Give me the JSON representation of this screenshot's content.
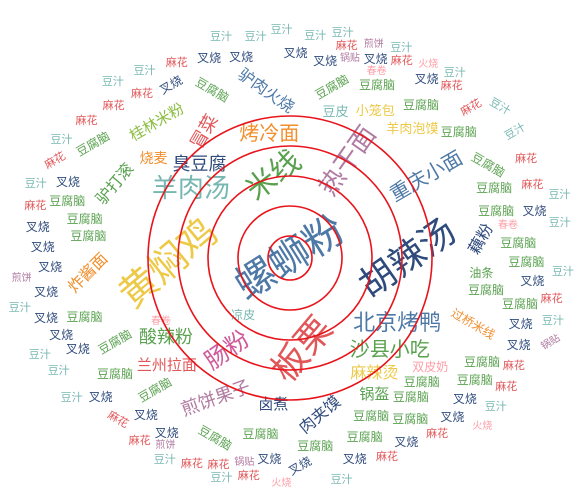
{
  "colors": {
    "background": "#ffffff",
    "ring": "#e8141b",
    "palette": [
      "#4e79a7",
      "#f28e2b",
      "#e15759",
      "#76b7b2",
      "#59a14f",
      "#edc948",
      "#b07aa1",
      "#ff9da7",
      "#9c755f",
      "#2f4b7c",
      "#8cbe44",
      "#d05a9a"
    ]
  },
  "words": [
    {
      "text": "螺蛳粉",
      "size": 40,
      "angle": -32,
      "color": "#4e79a7"
    },
    {
      "text": "黄焖鸡",
      "size": 38,
      "angle": -40,
      "color": "#edc948"
    },
    {
      "text": "胡辣汤",
      "size": 36,
      "angle": -35,
      "color": "#2f4b7c"
    },
    {
      "text": "板栗",
      "size": 36,
      "angle": -50,
      "color": "#e15759"
    },
    {
      "text": "米线",
      "size": 30,
      "angle": -38,
      "color": "#59a14f"
    },
    {
      "text": "热干面",
      "size": 26,
      "angle": -55,
      "color": "#b07aa1"
    },
    {
      "text": "肠粉",
      "size": 24,
      "angle": -35,
      "color": "#d05a9a"
    },
    {
      "text": "羊肉汤",
      "size": 26,
      "angle": 0,
      "color": "#76b7b2"
    },
    {
      "text": "北京烤鸭",
      "size": 22,
      "angle": 0,
      "color": "#4e79a7"
    },
    {
      "text": "沙县小吃",
      "size": 20,
      "angle": 0,
      "color": "#59a14f"
    },
    {
      "text": "臭豆腐",
      "size": 18,
      "angle": 0,
      "color": "#2f4b7c"
    },
    {
      "text": "重庆小面",
      "size": 20,
      "angle": -30,
      "color": "#4e79a7"
    },
    {
      "text": "烤冷面",
      "size": 20,
      "angle": 0,
      "color": "#f28e2b"
    },
    {
      "text": "酸辣粉",
      "size": 18,
      "angle": 0,
      "color": "#59a14f"
    },
    {
      "text": "麻辣烫",
      "size": 16,
      "angle": 0,
      "color": "#edc948"
    },
    {
      "text": "煎饼果子",
      "size": 18,
      "angle": -20,
      "color": "#b07aa1"
    },
    {
      "text": "冒菜",
      "size": 18,
      "angle": -60,
      "color": "#e15759"
    },
    {
      "text": "肉夹馍",
      "size": 16,
      "angle": -40,
      "color": "#2f4b7c"
    },
    {
      "text": "驴打滚",
      "size": 16,
      "angle": -50,
      "color": "#59a14f"
    },
    {
      "text": "驴肉火烧",
      "size": 16,
      "angle": 35,
      "color": "#4e79a7"
    },
    {
      "text": "藕粉",
      "size": 16,
      "angle": -60,
      "color": "#2f4b7c"
    },
    {
      "text": "炸酱面",
      "size": 16,
      "angle": -45,
      "color": "#f28e2b"
    },
    {
      "text": "兰州拉面",
      "size": 15,
      "angle": 0,
      "color": "#e15759"
    },
    {
      "text": "桂林米粉",
      "size": 15,
      "angle": -30,
      "color": "#8cbe44"
    },
    {
      "text": "卤煮",
      "size": 15,
      "angle": 0,
      "color": "#2f4b7c"
    },
    {
      "text": "锅盔",
      "size": 15,
      "angle": 0,
      "color": "#59a14f"
    },
    {
      "text": "烧麦",
      "size": 14,
      "angle": 0,
      "color": "#f28e2b"
    },
    {
      "text": "豆皮",
      "size": 13,
      "angle": 0,
      "color": "#76b7b2"
    },
    {
      "text": "小笼包",
      "size": 13,
      "angle": 0,
      "color": "#edc948"
    },
    {
      "text": "羊肉泡馍",
      "size": 13,
      "angle": 0,
      "color": "#edc948"
    },
    {
      "text": "过桥米线",
      "size": 12,
      "angle": 30,
      "color": "#f28e2b"
    },
    {
      "text": "双皮奶",
      "size": 12,
      "angle": 0,
      "color": "#ff9da7"
    },
    {
      "text": "凉皮",
      "size": 12,
      "angle": 0,
      "color": "#76b7b2"
    },
    {
      "text": "油条",
      "size": 12,
      "angle": 0,
      "color": "#59a14f"
    },
    {
      "text": "豆腐脑",
      "size": 12,
      "angle": 0,
      "color": "#59a14f"
    },
    {
      "text": "豆腐脑",
      "size": 12,
      "angle": -30,
      "color": "#59a14f"
    },
    {
      "text": "豆腐脑",
      "size": 12,
      "angle": 0,
      "color": "#59a14f"
    },
    {
      "text": "豆腐脑",
      "size": 12,
      "angle": 0,
      "color": "#59a14f"
    },
    {
      "text": "豆腐脑",
      "size": 12,
      "angle": -30,
      "color": "#59a14f"
    },
    {
      "text": "豆腐脑",
      "size": 12,
      "angle": 0,
      "color": "#59a14f"
    },
    {
      "text": "豆腐脑",
      "size": 12,
      "angle": 0,
      "color": "#59a14f"
    },
    {
      "text": "豆腐脑",
      "size": 12,
      "angle": 0,
      "color": "#59a14f"
    },
    {
      "text": "豆腐脑",
      "size": 12,
      "angle": -30,
      "color": "#59a14f"
    },
    {
      "text": "豆腐脑",
      "size": 12,
      "angle": 0,
      "color": "#59a14f"
    },
    {
      "text": "豆腐脑",
      "size": 12,
      "angle": 0,
      "color": "#59a14f"
    },
    {
      "text": "豆腐脑",
      "size": 12,
      "angle": 0,
      "color": "#59a14f"
    },
    {
      "text": "豆腐脑",
      "size": 12,
      "angle": 30,
      "color": "#59a14f"
    },
    {
      "text": "豆腐脑",
      "size": 12,
      "angle": 0,
      "color": "#59a14f"
    },
    {
      "text": "豆腐脑",
      "size": 12,
      "angle": 0,
      "color": "#59a14f"
    },
    {
      "text": "豆腐脑",
      "size": 12,
      "angle": 0,
      "color": "#59a14f"
    },
    {
      "text": "豆腐脑",
      "size": 12,
      "angle": 0,
      "color": "#59a14f"
    },
    {
      "text": "豆腐脑",
      "size": 12,
      "angle": 30,
      "color": "#59a14f"
    },
    {
      "text": "豆腐脑",
      "size": 12,
      "angle": 0,
      "color": "#59a14f"
    },
    {
      "text": "豆腐脑",
      "size": 12,
      "angle": 0,
      "color": "#59a14f"
    },
    {
      "text": "豆腐脑",
      "size": 12,
      "angle": 0,
      "color": "#59a14f"
    },
    {
      "text": "豆腐脑",
      "size": 12,
      "angle": 0,
      "color": "#59a14f"
    },
    {
      "text": "豆腐脑",
      "size": 12,
      "angle": 30,
      "color": "#59a14f"
    },
    {
      "text": "豆腐脑",
      "size": 12,
      "angle": 0,
      "color": "#59a14f"
    },
    {
      "text": "豆腐脑",
      "size": 12,
      "angle": 0,
      "color": "#59a14f"
    },
    {
      "text": "豆腐脑",
      "size": 12,
      "angle": 0,
      "color": "#59a14f"
    },
    {
      "text": "豆腐脑",
      "size": 12,
      "angle": 0,
      "color": "#59a14f"
    },
    {
      "text": "豆腐脑",
      "size": 12,
      "angle": 0,
      "color": "#59a14f"
    },
    {
      "text": "豆腐脑",
      "size": 12,
      "angle": -30,
      "color": "#59a14f"
    },
    {
      "text": "豆腐脑",
      "size": 12,
      "angle": 0,
      "color": "#59a14f"
    },
    {
      "text": "叉烧",
      "size": 12,
      "angle": 0,
      "color": "#2f4b7c"
    },
    {
      "text": "叉烧",
      "size": 12,
      "angle": 0,
      "color": "#2f4b7c"
    },
    {
      "text": "叉烧",
      "size": 12,
      "angle": 0,
      "color": "#2f4b7c"
    },
    {
      "text": "叉烧",
      "size": 12,
      "angle": 0,
      "color": "#2f4b7c"
    },
    {
      "text": "叉烧",
      "size": 12,
      "angle": -30,
      "color": "#2f4b7c"
    },
    {
      "text": "叉烧",
      "size": 12,
      "angle": 0,
      "color": "#2f4b7c"
    },
    {
      "text": "叉烧",
      "size": 12,
      "angle": 0,
      "color": "#2f4b7c"
    },
    {
      "text": "叉烧",
      "size": 12,
      "angle": 0,
      "color": "#2f4b7c"
    },
    {
      "text": "叉烧",
      "size": 12,
      "angle": 0,
      "color": "#2f4b7c"
    },
    {
      "text": "叉烧",
      "size": 12,
      "angle": 0,
      "color": "#2f4b7c"
    },
    {
      "text": "叉烧",
      "size": 12,
      "angle": 0,
      "color": "#2f4b7c"
    },
    {
      "text": "叉烧",
      "size": 12,
      "angle": 0,
      "color": "#2f4b7c"
    },
    {
      "text": "叉烧",
      "size": 12,
      "angle": 0,
      "color": "#2f4b7c"
    },
    {
      "text": "叉烧",
      "size": 12,
      "angle": 0,
      "color": "#2f4b7c"
    },
    {
      "text": "叉烧",
      "size": 12,
      "angle": 0,
      "color": "#2f4b7c"
    },
    {
      "text": "叉烧",
      "size": 12,
      "angle": 0,
      "color": "#2f4b7c"
    },
    {
      "text": "叉烧",
      "size": 12,
      "angle": 0,
      "color": "#2f4b7c"
    },
    {
      "text": "叉烧",
      "size": 12,
      "angle": 0,
      "color": "#2f4b7c"
    },
    {
      "text": "叉烧",
      "size": 12,
      "angle": 0,
      "color": "#2f4b7c"
    },
    {
      "text": "叉烧",
      "size": 12,
      "angle": 0,
      "color": "#2f4b7c"
    },
    {
      "text": "叉烧",
      "size": 12,
      "angle": 0,
      "color": "#2f4b7c"
    },
    {
      "text": "叉烧",
      "size": 12,
      "angle": -30,
      "color": "#2f4b7c"
    },
    {
      "text": "叉烧",
      "size": 12,
      "angle": 0,
      "color": "#2f4b7c"
    },
    {
      "text": "叉烧",
      "size": 12,
      "angle": 0,
      "color": "#2f4b7c"
    },
    {
      "text": "叉烧",
      "size": 12,
      "angle": 0,
      "color": "#2f4b7c"
    },
    {
      "text": "叉烧",
      "size": 12,
      "angle": 0,
      "color": "#2f4b7c"
    },
    {
      "text": "叉烧",
      "size": 12,
      "angle": 0,
      "color": "#2f4b7c"
    },
    {
      "text": "叉烧",
      "size": 12,
      "angle": 0,
      "color": "#2f4b7c"
    },
    {
      "text": "麻花",
      "size": 11,
      "angle": 0,
      "color": "#e15759"
    },
    {
      "text": "麻花",
      "size": 11,
      "angle": -30,
      "color": "#e15759"
    },
    {
      "text": "麻花",
      "size": 11,
      "angle": 0,
      "color": "#e15759"
    },
    {
      "text": "麻花",
      "size": 11,
      "angle": 0,
      "color": "#e15759"
    },
    {
      "text": "麻花",
      "size": 11,
      "angle": 0,
      "color": "#e15759"
    },
    {
      "text": "麻花",
      "size": 11,
      "angle": 30,
      "color": "#e15759"
    },
    {
      "text": "麻花",
      "size": 11,
      "angle": 0,
      "color": "#e15759"
    },
    {
      "text": "麻花",
      "size": 11,
      "angle": 0,
      "color": "#e15759"
    },
    {
      "text": "麻花",
      "size": 11,
      "angle": 0,
      "color": "#e15759"
    },
    {
      "text": "麻花",
      "size": 11,
      "angle": -30,
      "color": "#e15759"
    },
    {
      "text": "麻花",
      "size": 11,
      "angle": 0,
      "color": "#e15759"
    },
    {
      "text": "麻花",
      "size": 11,
      "angle": 0,
      "color": "#e15759"
    },
    {
      "text": "麻花",
      "size": 11,
      "angle": 0,
      "color": "#e15759"
    },
    {
      "text": "麻花",
      "size": 11,
      "angle": 0,
      "color": "#e15759"
    },
    {
      "text": "麻花",
      "size": 11,
      "angle": 0,
      "color": "#e15759"
    },
    {
      "text": "麻花",
      "size": 11,
      "angle": 0,
      "color": "#e15759"
    },
    {
      "text": "麻花",
      "size": 11,
      "angle": 0,
      "color": "#e15759"
    },
    {
      "text": "麻花",
      "size": 11,
      "angle": 0,
      "color": "#e15759"
    },
    {
      "text": "麻花",
      "size": 11,
      "angle": 0,
      "color": "#e15759"
    },
    {
      "text": "麻花",
      "size": 11,
      "angle": 0,
      "color": "#e15759"
    },
    {
      "text": "麻花",
      "size": 11,
      "angle": 0,
      "color": "#e15759"
    },
    {
      "text": "麻花",
      "size": 11,
      "angle": 0,
      "color": "#e15759"
    },
    {
      "text": "豆汁",
      "size": 11,
      "angle": 0,
      "color": "#76b7b2"
    },
    {
      "text": "豆汁",
      "size": 11,
      "angle": 0,
      "color": "#76b7b2"
    },
    {
      "text": "豆汁",
      "size": 11,
      "angle": 0,
      "color": "#76b7b2"
    },
    {
      "text": "豆汁",
      "size": 11,
      "angle": 0,
      "color": "#76b7b2"
    },
    {
      "text": "豆汁",
      "size": 11,
      "angle": 0,
      "color": "#76b7b2"
    },
    {
      "text": "豆汁",
      "size": 11,
      "angle": 0,
      "color": "#76b7b2"
    },
    {
      "text": "豆汁",
      "size": 11,
      "angle": -30,
      "color": "#76b7b2"
    },
    {
      "text": "豆汁",
      "size": 11,
      "angle": 0,
      "color": "#76b7b2"
    },
    {
      "text": "豆汁",
      "size": 11,
      "angle": 0,
      "color": "#76b7b2"
    },
    {
      "text": "豆汁",
      "size": 11,
      "angle": 0,
      "color": "#76b7b2"
    },
    {
      "text": "豆汁",
      "size": 11,
      "angle": 0,
      "color": "#76b7b2"
    },
    {
      "text": "豆汁",
      "size": 11,
      "angle": 0,
      "color": "#76b7b2"
    },
    {
      "text": "豆汁",
      "size": 11,
      "angle": 0,
      "color": "#76b7b2"
    },
    {
      "text": "豆汁",
      "size": 11,
      "angle": 0,
      "color": "#76b7b2"
    },
    {
      "text": "豆汁",
      "size": 11,
      "angle": 0,
      "color": "#76b7b2"
    },
    {
      "text": "豆汁",
      "size": 11,
      "angle": 0,
      "color": "#76b7b2"
    },
    {
      "text": "豆汁",
      "size": 11,
      "angle": 0,
      "color": "#76b7b2"
    },
    {
      "text": "豆汁",
      "size": 11,
      "angle": 0,
      "color": "#76b7b2"
    },
    {
      "text": "豆汁",
      "size": 11,
      "angle": 0,
      "color": "#76b7b2"
    },
    {
      "text": "豆汁",
      "size": 11,
      "angle": 0,
      "color": "#76b7b2"
    },
    {
      "text": "豆汁",
      "size": 11,
      "angle": 30,
      "color": "#76b7b2"
    },
    {
      "text": "豆汁",
      "size": 11,
      "angle": 0,
      "color": "#76b7b2"
    },
    {
      "text": "豆汁",
      "size": 11,
      "angle": 0,
      "color": "#76b7b2"
    },
    {
      "text": "豆汁",
      "size": 11,
      "angle": 0,
      "color": "#76b7b2"
    },
    {
      "text": "豆汁",
      "size": 11,
      "angle": 0,
      "color": "#76b7b2"
    },
    {
      "text": "春卷",
      "size": 10,
      "angle": 0,
      "color": "#ff9da7"
    },
    {
      "text": "春卷",
      "size": 10,
      "angle": 0,
      "color": "#ff9da7"
    },
    {
      "text": "春卷",
      "size": 10,
      "angle": 0,
      "color": "#ff9da7"
    },
    {
      "text": "锅贴",
      "size": 10,
      "angle": 0,
      "color": "#b07aa1"
    },
    {
      "text": "锅贴",
      "size": 10,
      "angle": 0,
      "color": "#b07aa1"
    },
    {
      "text": "锅贴",
      "size": 10,
      "angle": -30,
      "color": "#b07aa1"
    },
    {
      "text": "煎饼",
      "size": 10,
      "angle": 0,
      "color": "#b07aa1"
    },
    {
      "text": "煎饼",
      "size": 10,
      "angle": 0,
      "color": "#b07aa1"
    },
    {
      "text": "煎饼",
      "size": 10,
      "angle": 0,
      "color": "#b07aa1"
    },
    {
      "text": "火烧",
      "size": 10,
      "angle": 0,
      "color": "#ff9da7"
    },
    {
      "text": "火烧",
      "size": 10,
      "angle": 0,
      "color": "#ff9da7"
    },
    {
      "text": "火烧",
      "size": 10,
      "angle": 0,
      "color": "#ff9da7"
    }
  ]
}
